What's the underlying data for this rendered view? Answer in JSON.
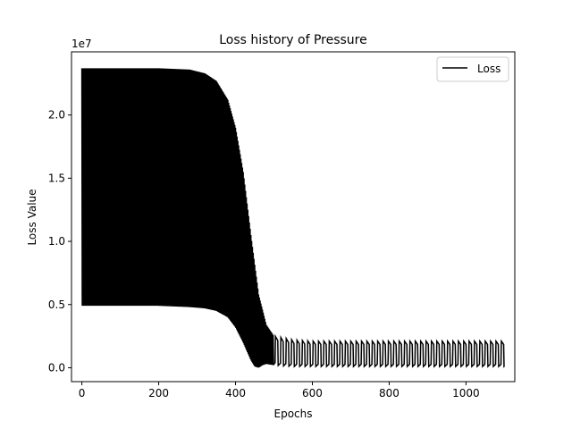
{
  "chart_data": {
    "type": "line",
    "title": "Loss history of Pressure",
    "xlabel": "Epochs",
    "ylabel": "Loss Value",
    "offset_label": "1e7",
    "xlim": [
      -27,
      1127
    ],
    "ylim": [
      -0.11,
      2.5
    ],
    "y_multiplier": 10000000,
    "xticks": [
      0,
      200,
      400,
      600,
      800,
      1000
    ],
    "xtick_labels": [
      "0",
      "200",
      "400",
      "600",
      "800",
      "1000"
    ],
    "yticks": [
      0.0,
      0.5,
      1.0,
      1.5,
      2.0
    ],
    "ytick_labels": [
      "0.0",
      "0.5",
      "1.0",
      "1.5",
      "2.0"
    ],
    "grid": false,
    "legend_position": "upper right",
    "colors": {
      "line": "#000000"
    },
    "series": [
      {
        "name": "Loss",
        "style": "oscillating",
        "upper_envelope": {
          "x": [
            0,
            100,
            200,
            280,
            320,
            350,
            380,
            400,
            420,
            440,
            460,
            480,
            500,
            550,
            600,
            800,
            1000,
            1100
          ],
          "y": [
            2.37,
            2.37,
            2.37,
            2.36,
            2.33,
            2.27,
            2.12,
            1.9,
            1.55,
            1.05,
            0.58,
            0.34,
            0.25,
            0.22,
            0.21,
            0.21,
            0.21,
            0.21
          ]
        },
        "lower_envelope": {
          "x": [
            0,
            100,
            200,
            280,
            320,
            350,
            380,
            400,
            420,
            440,
            450,
            460,
            470,
            480,
            500,
            550,
            600,
            800,
            1000,
            1100
          ],
          "y": [
            0.49,
            0.49,
            0.49,
            0.48,
            0.47,
            0.45,
            0.4,
            0.32,
            0.2,
            0.06,
            0.01,
            0.0,
            0.02,
            0.03,
            0.02,
            0.01,
            0.01,
            0.01,
            0.01,
            0.01
          ]
        }
      }
    ]
  }
}
